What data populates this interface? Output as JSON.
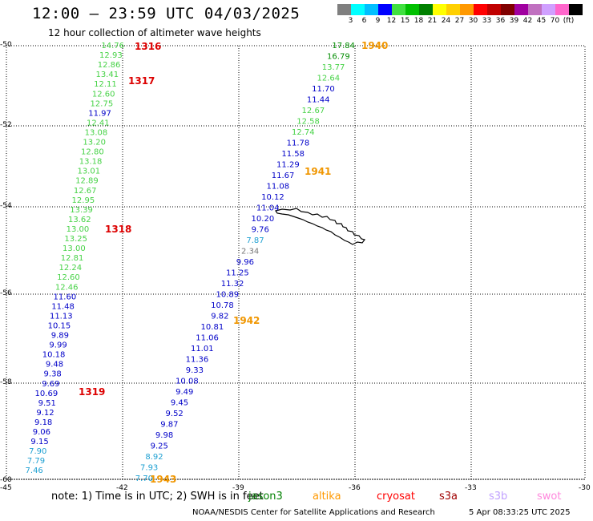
{
  "header": {
    "title": "12:00 — 23:59 UTC 04/03/2025",
    "subtitle": "12 hour collection of altimeter wave heights"
  },
  "colorbar": {
    "colors": [
      "#7f7f7f",
      "#00ffff",
      "#00bfff",
      "#0000ff",
      "#40e040",
      "#00c000",
      "#008000",
      "#ffff00",
      "#ffd000",
      "#ff9900",
      "#ff0000",
      "#c00000",
      "#800000",
      "#a000a0",
      "#c070c0",
      "#d0a0ff",
      "#ff66cc",
      "#000000"
    ],
    "labels": [
      "3",
      "6",
      "9",
      "12",
      "15",
      "18",
      "21",
      "24",
      "27",
      "30",
      "33",
      "36",
      "39",
      "42",
      "45",
      "70",
      "(ft)"
    ]
  },
  "axes": {
    "lat_labels": [
      "-50",
      "-52",
      "-54",
      "-56",
      "-58",
      "-60"
    ],
    "lon_labels": [
      "-45",
      "-42",
      "-39",
      "-36",
      "-33",
      "-30"
    ]
  },
  "colors": {
    "blue": "#0000c8",
    "green": "#46d246",
    "darkgreen": "#008c00",
    "cyan": "#1ea0d2",
    "gray": "#787878",
    "red": "#dc0000",
    "orange": "#f09600"
  },
  "tracks": [
    {
      "points": [
        {
          "v": "14.76",
          "c": "green"
        },
        {
          "v": "12.93",
          "c": "green"
        },
        {
          "v": "12.86",
          "c": "green"
        },
        {
          "v": "13.41",
          "c": "green"
        },
        {
          "v": "12.11",
          "c": "green"
        },
        {
          "v": "12.60",
          "c": "green"
        },
        {
          "v": "12.75",
          "c": "green"
        },
        {
          "v": "11.97",
          "c": "blue"
        },
        {
          "v": "12.41",
          "c": "green"
        },
        {
          "v": "13.08",
          "c": "green"
        },
        {
          "v": "13.20",
          "c": "green"
        },
        {
          "v": "12.80",
          "c": "green"
        },
        {
          "v": "13.18",
          "c": "green"
        },
        {
          "v": "13.01",
          "c": "green"
        },
        {
          "v": "12.89",
          "c": "green"
        },
        {
          "v": "12.67",
          "c": "green"
        },
        {
          "v": "12.95",
          "c": "green"
        },
        {
          "v": "13.39",
          "c": "green"
        },
        {
          "v": "13.62",
          "c": "green"
        },
        {
          "v": "13.00",
          "c": "green"
        },
        {
          "v": "13.25",
          "c": "green"
        },
        {
          "v": "13.00",
          "c": "green"
        },
        {
          "v": "12.81",
          "c": "green"
        },
        {
          "v": "12.24",
          "c": "green"
        },
        {
          "v": "12.60",
          "c": "green"
        },
        {
          "v": "12.46",
          "c": "green"
        },
        {
          "v": "11.60",
          "c": "blue"
        },
        {
          "v": "11.48",
          "c": "blue"
        },
        {
          "v": "11.13",
          "c": "blue"
        },
        {
          "v": "10.15",
          "c": "blue"
        },
        {
          "v": "9.89",
          "c": "blue"
        },
        {
          "v": "9.99",
          "c": "blue"
        },
        {
          "v": "10.18",
          "c": "blue"
        },
        {
          "v": "9.48",
          "c": "blue"
        },
        {
          "v": "9.38",
          "c": "blue"
        },
        {
          "v": "9.69",
          "c": "blue"
        },
        {
          "v": "10.69",
          "c": "blue"
        },
        {
          "v": "9.51",
          "c": "blue"
        },
        {
          "v": "9.12",
          "c": "blue"
        },
        {
          "v": "9.18",
          "c": "blue"
        },
        {
          "v": "9.06",
          "c": "blue"
        },
        {
          "v": "9.15",
          "c": "blue"
        },
        {
          "v": "7.90",
          "c": "cyan"
        },
        {
          "v": "7.79",
          "c": "cyan"
        },
        {
          "v": "7.46",
          "c": "cyan"
        }
      ]
    },
    {
      "points": [
        {
          "v": "17.84",
          "c": "darkgreen"
        },
        {
          "v": "16.79",
          "c": "darkgreen"
        },
        {
          "v": "13.77",
          "c": "green"
        },
        {
          "v": "12.64",
          "c": "green"
        },
        {
          "v": "11.70",
          "c": "blue"
        },
        {
          "v": "11.44",
          "c": "blue"
        },
        {
          "v": "12.67",
          "c": "green"
        },
        {
          "v": "12.58",
          "c": "green"
        },
        {
          "v": "12.74",
          "c": "green"
        },
        {
          "v": "11.78",
          "c": "blue"
        },
        {
          "v": "11.58",
          "c": "blue"
        },
        {
          "v": "11.29",
          "c": "blue"
        },
        {
          "v": "11.67",
          "c": "blue"
        },
        {
          "v": "11.08",
          "c": "blue"
        },
        {
          "v": "10.12",
          "c": "blue"
        },
        {
          "v": "11.04",
          "c": "blue"
        },
        {
          "v": "10.20",
          "c": "blue"
        },
        {
          "v": "9.76",
          "c": "blue"
        },
        {
          "v": "7.87",
          "c": "cyan"
        },
        {
          "v": "2.34",
          "c": "gray"
        },
        {
          "v": "9.96",
          "c": "blue"
        },
        {
          "v": "11.25",
          "c": "blue"
        },
        {
          "v": "11.32",
          "c": "blue"
        },
        {
          "v": "10.89",
          "c": "blue"
        },
        {
          "v": "10.78",
          "c": "blue"
        },
        {
          "v": "9.82",
          "c": "blue"
        },
        {
          "v": "10.81",
          "c": "blue"
        },
        {
          "v": "11.06",
          "c": "blue"
        },
        {
          "v": "11.01",
          "c": "blue"
        },
        {
          "v": "11.36",
          "c": "blue"
        },
        {
          "v": "9.33",
          "c": "blue"
        },
        {
          "v": "10.08",
          "c": "blue"
        },
        {
          "v": "9.49",
          "c": "blue"
        },
        {
          "v": "9.45",
          "c": "blue"
        },
        {
          "v": "9.52",
          "c": "blue"
        },
        {
          "v": "9.87",
          "c": "blue"
        },
        {
          "v": "9.98",
          "c": "blue"
        },
        {
          "v": "9.25",
          "c": "blue"
        },
        {
          "v": "8.92",
          "c": "cyan"
        },
        {
          "v": "7.93",
          "c": "cyan"
        },
        {
          "v": "7.70",
          "c": "cyan"
        }
      ]
    }
  ],
  "time_tags": [
    {
      "t": "1316",
      "c": "red"
    },
    {
      "t": "1317",
      "c": "red"
    },
    {
      "t": "1318",
      "c": "red"
    },
    {
      "t": "1319",
      "c": "red"
    },
    {
      "t": "1940",
      "c": "orange"
    },
    {
      "t": "1941",
      "c": "orange"
    },
    {
      "t": "1942",
      "c": "orange"
    },
    {
      "t": "1943",
      "c": "orange"
    }
  ],
  "footer": {
    "note": "note:  1) Time is in UTC;  2) SWH is in feet",
    "satellites": [
      {
        "name": "jason3",
        "color": "#008000"
      },
      {
        "name": "altika",
        "color": "#ff9900"
      },
      {
        "name": "cryosat",
        "color": "#ff0000"
      },
      {
        "name": "s3a",
        "color": "#a00000"
      },
      {
        "name": "s3b",
        "color": "#c0a0ff"
      },
      {
        "name": "swot",
        "color": "#ff88dd"
      }
    ],
    "credit": "NOAA/NESDIS Center for Satellite Applications and Research",
    "timestamp": "5 Apr 08:33:25 UTC 2025"
  }
}
